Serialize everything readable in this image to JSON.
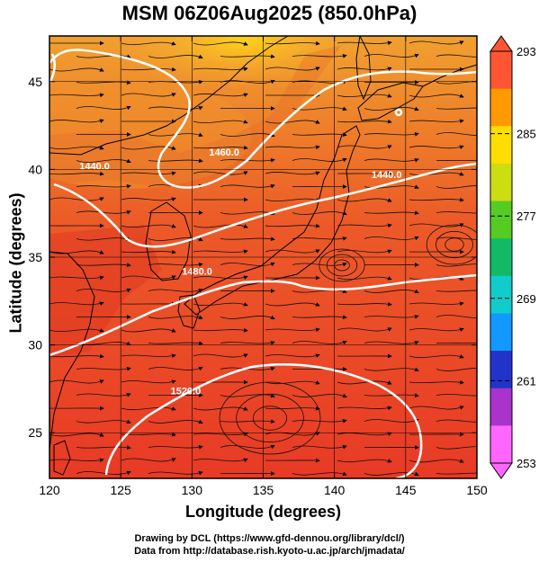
{
  "title": "MSM 06Z06Aug2025 (850.0hPa)",
  "x_axis": {
    "label": "Longitude (degrees)",
    "ticks": [
      "120",
      "125",
      "130",
      "135",
      "140",
      "145",
      "150"
    ],
    "range": [
      120,
      150
    ]
  },
  "y_axis": {
    "label": "Latitude (degrees)",
    "ticks": [
      "25",
      "30",
      "35",
      "40",
      "45"
    ],
    "range": [
      22.4,
      47.6
    ]
  },
  "colorbar": {
    "ticks": [
      "293",
      "285",
      "277",
      "269",
      "261",
      "253"
    ],
    "range": [
      253,
      293
    ],
    "colors": [
      "#ff66ff",
      "#aa33cc",
      "#2233cc",
      "#1199ff",
      "#11cccc",
      "#11bb66",
      "#55cc22",
      "#ccdd11",
      "#ffdd00",
      "#ff9900",
      "#ff5533"
    ]
  },
  "contours": [
    {
      "label": "1460.0",
      "lon": 131.2,
      "lat": 40.8
    },
    {
      "label": "1440.0",
      "lon": 122.1,
      "lat": 40.0
    },
    {
      "label": "1440.0",
      "lon": 142.6,
      "lat": 39.5
    },
    {
      "label": "1480.0",
      "lon": 129.3,
      "lat": 34.0
    },
    {
      "label": "1520.0",
      "lon": 128.5,
      "lat": 27.2
    }
  ],
  "credits": {
    "line1": "Drawing by DCL (https://www.gfd-dennou.org/library/dcl/)",
    "line2": "Data from http://database.rish.kyoto-u.ac.jp/arch/jmadata/"
  },
  "colors": {
    "warm": "#ee3322",
    "orange": "#ee8822",
    "yellow": "#ffdd00",
    "contour": "#ffffff"
  }
}
